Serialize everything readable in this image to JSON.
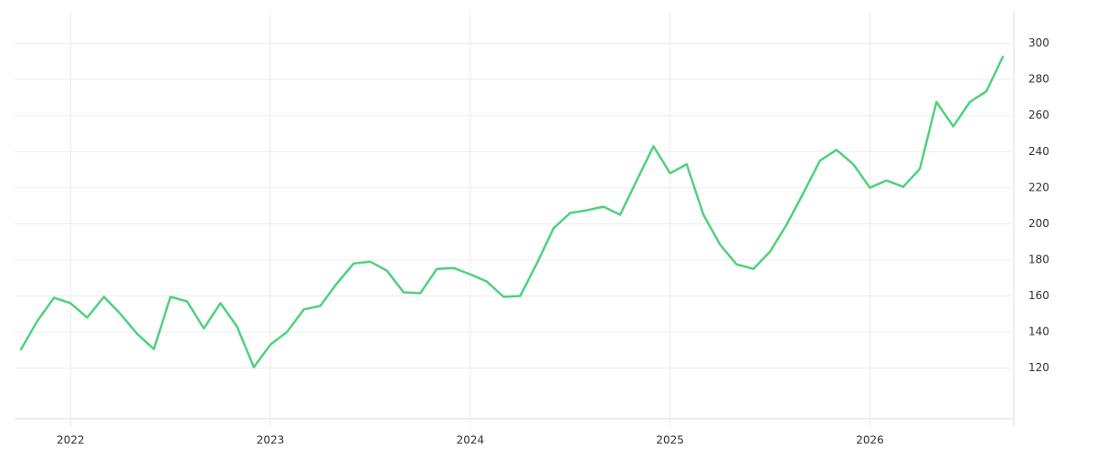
{
  "chart_data": {
    "type": "line",
    "x": [
      2021.75,
      2021.833,
      2021.917,
      2022,
      2022.083,
      2022.167,
      2022.25,
      2022.333,
      2022.417,
      2022.5,
      2022.583,
      2022.667,
      2022.75,
      2022.833,
      2022.917,
      2023,
      2023.083,
      2023.167,
      2023.25,
      2023.333,
      2023.417,
      2023.5,
      2023.583,
      2023.667,
      2023.75,
      2023.833,
      2023.917,
      2024,
      2024.083,
      2024.167,
      2024.25,
      2024.333,
      2024.417,
      2024.5,
      2024.583,
      2024.667,
      2024.75,
      2024.833,
      2024.917,
      2025,
      2025.083,
      2025.167,
      2025.25,
      2025.333,
      2025.417,
      2025.5,
      2025.583,
      2025.667,
      2025.75,
      2025.833,
      2025.917,
      2026,
      2026.083,
      2026.167,
      2026.25,
      2026.333,
      2026.417,
      2026.5,
      2026.583,
      2026.667
    ],
    "series": [
      {
        "color": "#4fd27d",
        "values": [
          130,
          146,
          159,
          156,
          148,
          159.5,
          150,
          139,
          130.5,
          159.5,
          157,
          142,
          156,
          143,
          120.5,
          133,
          140,
          152.5,
          154.5,
          167,
          178,
          179,
          174,
          162,
          161.5,
          175,
          175.5,
          172,
          168,
          159.5,
          160,
          178,
          197.5,
          206,
          207.5,
          209.5,
          205,
          224,
          243,
          228,
          233,
          205,
          188.5,
          177.5,
          175,
          184.5,
          199.5,
          217,
          235,
          241,
          233,
          220,
          224,
          220.5,
          230.5,
          267.5,
          254,
          267.5,
          273.5,
          293
        ]
      }
    ],
    "xlim": [
      2021.72,
      2026.72
    ],
    "xticks": [
      2022,
      2023,
      2024,
      2025,
      2026
    ],
    "ylim": [
      92,
      318
    ],
    "yticks": [
      120,
      140,
      160,
      180,
      200,
      220,
      240,
      260,
      280,
      300
    ],
    "grid": true
  }
}
